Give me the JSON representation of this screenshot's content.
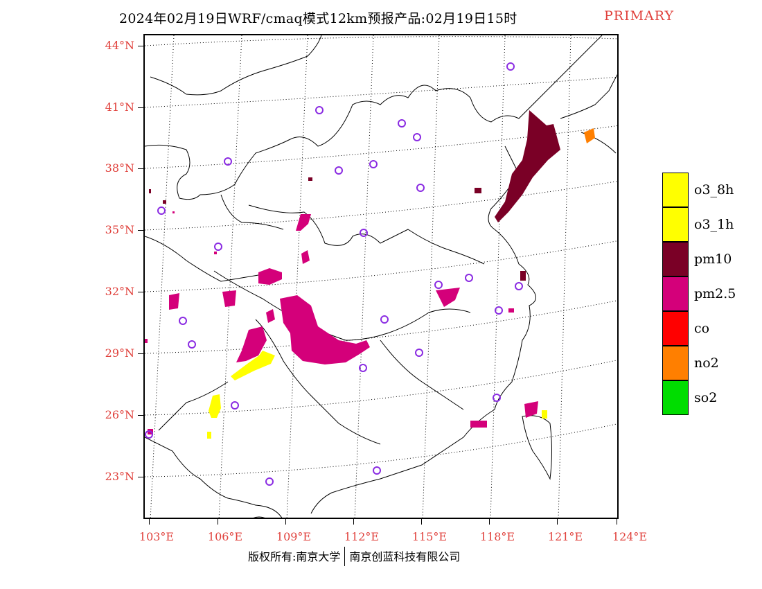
{
  "title": {
    "main": "2024年02月19日WRF/cmaq模式12km预报产品:02月19日15时",
    "tag": "PRIMARY"
  },
  "axes": {
    "lat_labels": [
      "44°N",
      "41°N",
      "38°N",
      "35°N",
      "32°N",
      "29°N",
      "26°N",
      "23°N"
    ],
    "lon_labels": [
      "103°E",
      "106°E",
      "109°E",
      "112°E",
      "115°E",
      "118°E",
      "121°E",
      "124°E"
    ]
  },
  "legend": [
    {
      "label": "o3_8h",
      "color": "#ffff00"
    },
    {
      "label": "o3_1h",
      "color": "#ffff00"
    },
    {
      "label": "pm10",
      "color": "#7a0026"
    },
    {
      "label": "pm2.5",
      "color": "#d4007a"
    },
    {
      "label": "co",
      "color": "#ff0000"
    },
    {
      "label": "no2",
      "color": "#ff7f00"
    },
    {
      "label": "so2",
      "color": "#00dd00"
    }
  ],
  "footer": {
    "left": "版权所有:南京大学",
    "right": "南京创蓝科技有限公司"
  },
  "colors": {
    "station_marker": "#8a2be2",
    "axis_label": "#e0413c"
  }
}
